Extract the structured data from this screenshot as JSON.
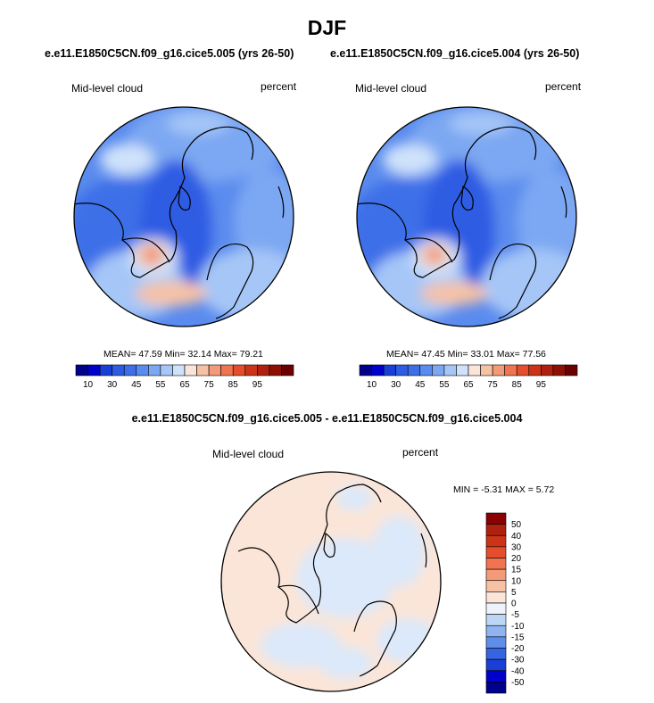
{
  "figure": {
    "title": "DJF",
    "diff_title": "e.e11.E1850C5CN.f09_g16.cice5.005 - e.e11.E1850C5CN.f09_g16.cice5.004"
  },
  "panels": [
    {
      "case_title": "e.e11.E1850C5CN.f09_g16.cice5.005 (yrs 26-50)",
      "variable": "Mid-level cloud",
      "units": "percent",
      "stats_text": "MEAN=  47.59  Min=  32.14  Max=  79.21"
    },
    {
      "case_title": "e.e11.E1850C5CN.f09_g16.cice5.004 (yrs 26-50)",
      "variable": "Mid-level cloud",
      "units": "percent",
      "stats_text": "MEAN=  47.45  Min=  33.01  Max=  77.56"
    },
    {
      "variable": "Mid-level cloud",
      "units": "percent",
      "stats_text": "MIN =  -5.31 MAX =   5.72"
    }
  ],
  "chart_data": [
    {
      "type": "heatmap",
      "projection": "north-polar-stereographic",
      "variable": "Mid-level cloud",
      "units": "percent",
      "season": "DJF",
      "case": "e.e11.E1850C5CN.f09_g16.cice5.005 (yrs 26-50)",
      "mean": 47.59,
      "min": 32.14,
      "max": 79.21,
      "colorbar": {
        "orientation": "horizontal",
        "levels": [
          10,
          15,
          20,
          25,
          30,
          35,
          40,
          45,
          50,
          55,
          60,
          65,
          70,
          75,
          80,
          85,
          90,
          95
        ],
        "tick_labels": [
          "10",
          "30",
          "45",
          "55",
          "65",
          "75",
          "85",
          "95"
        ],
        "colors": [
          "#00008b",
          "#0000cd",
          "#1a3fd6",
          "#2e5be3",
          "#3e6fe8",
          "#5a8bee",
          "#7ca7f2",
          "#a5c6f7",
          "#cfe2fb",
          "#fbe5d8",
          "#f6c2a5",
          "#f39a78",
          "#ef744f",
          "#e54e2c",
          "#cc3317",
          "#b0200e",
          "#8e1005",
          "#6b0000"
        ]
      }
    },
    {
      "type": "heatmap",
      "projection": "north-polar-stereographic",
      "variable": "Mid-level cloud",
      "units": "percent",
      "season": "DJF",
      "case": "e.e11.E1850C5CN.f09_g16.cice5.004 (yrs 26-50)",
      "mean": 47.45,
      "min": 33.01,
      "max": 77.56,
      "colorbar": {
        "orientation": "horizontal",
        "levels": [
          10,
          15,
          20,
          25,
          30,
          35,
          40,
          45,
          50,
          55,
          60,
          65,
          70,
          75,
          80,
          85,
          90,
          95
        ],
        "tick_labels": [
          "10",
          "30",
          "45",
          "55",
          "65",
          "75",
          "85",
          "95"
        ],
        "colors": [
          "#00008b",
          "#0000cd",
          "#1a3fd6",
          "#2e5be3",
          "#3e6fe8",
          "#5a8bee",
          "#7ca7f2",
          "#a5c6f7",
          "#cfe2fb",
          "#fbe5d8",
          "#f6c2a5",
          "#f39a78",
          "#ef744f",
          "#e54e2c",
          "#cc3317",
          "#b0200e",
          "#8e1005",
          "#6b0000"
        ]
      }
    },
    {
      "type": "heatmap",
      "projection": "north-polar-stereographic",
      "variable": "Mid-level cloud",
      "units": "percent",
      "season": "DJF",
      "case": "e.e11.E1850C5CN.f09_g16.cice5.005 - e.e11.E1850C5CN.f09_g16.cice5.004",
      "min": -5.31,
      "max": 5.72,
      "colorbar": {
        "orientation": "vertical",
        "levels": [
          -50,
          -40,
          -30,
          -20,
          -15,
          -10,
          -5,
          0,
          5,
          10,
          15,
          20,
          30,
          40,
          50
        ],
        "tick_labels": [
          "50",
          "40",
          "30",
          "20",
          "15",
          "10",
          "5",
          "0",
          "-5",
          "-10",
          "-15",
          "-20",
          "-30",
          "-40",
          "-50"
        ],
        "colors": [
          "#8b0000",
          "#b0200e",
          "#cc3317",
          "#e54e2c",
          "#ef744f",
          "#f39a78",
          "#f6c2a5",
          "#fbe5d8",
          "#eef3fb",
          "#bcd6f6",
          "#8fb4f0",
          "#5f8eea",
          "#3565e0",
          "#1a3fd6",
          "#0000cd",
          "#00008b"
        ]
      }
    }
  ]
}
